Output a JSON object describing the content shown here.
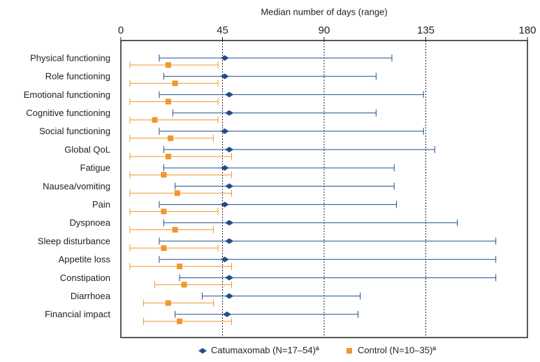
{
  "chart_data": {
    "type": "range",
    "x_axis_label": "Median number of days (range)",
    "xlim": [
      0,
      180
    ],
    "xticks": [
      0,
      45,
      90,
      135,
      180
    ],
    "grid_lines": [
      45,
      90,
      135
    ],
    "categories": [
      "Physical functioning",
      "Role functioning",
      "Emotional functioning",
      "Cognitive functioning",
      "Social functioning",
      "Global QoL",
      "Fatigue",
      "Nausea/vomiting",
      "Pain",
      "Dyspnoea",
      "Sleep disturbance",
      "Appetite loss",
      "Constipation",
      "Diarrhoea",
      "Financial impact"
    ],
    "series": [
      {
        "name": "Catumaxomab (N=17–54)ª",
        "color": "#1f4e8c",
        "marker": "diamond",
        "values": [
          46,
          46,
          48,
          48,
          46,
          48,
          46,
          48,
          46,
          48,
          48,
          46,
          48,
          48,
          47
        ],
        "low": [
          17,
          19,
          17,
          23,
          17,
          19,
          19,
          24,
          17,
          19,
          17,
          17,
          26,
          36,
          24
        ],
        "high": [
          120,
          113,
          134,
          113,
          134,
          139,
          121,
          121,
          122,
          149,
          166,
          166,
          166,
          106,
          105
        ]
      },
      {
        "name": "Control (N=10–35)ª",
        "color": "#f0962e",
        "marker": "square",
        "values": [
          21,
          24,
          21,
          15,
          22,
          21,
          19,
          25,
          19,
          24,
          19,
          26,
          28,
          21,
          26
        ],
        "low": [
          4,
          4,
          4,
          4,
          4,
          4,
          4,
          4,
          4,
          4,
          4,
          4,
          15,
          10,
          10
        ],
        "high": [
          43,
          43,
          43,
          43,
          41,
          49,
          49,
          49,
          43,
          41,
          43,
          49,
          49,
          41,
          49
        ]
      }
    ]
  }
}
